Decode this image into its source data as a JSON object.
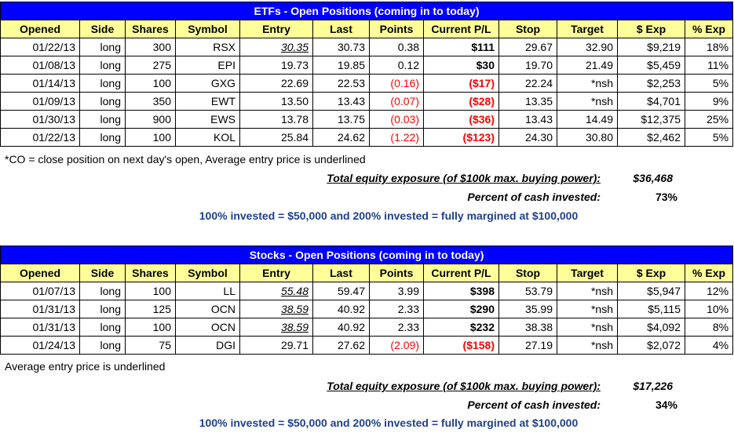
{
  "columns": [
    "Opened",
    "Side",
    "Shares",
    "Symbol",
    "Entry",
    "Last",
    "Points",
    "Current P/L",
    "Stop",
    "Target",
    "$ Exp",
    "% Exp"
  ],
  "etfs": {
    "title": "ETFs - Open Positions (coming in to today)",
    "rows": [
      {
        "opened": "01/22/13",
        "side": "long",
        "shares": "300",
        "symbol": "RSX",
        "entry": "30.35",
        "entry_underlined": true,
        "last": "30.73",
        "points": "0.38",
        "points_negative": false,
        "pl": "$111",
        "pl_negative": false,
        "stop": "29.67",
        "target": "32.90",
        "exp": "$9,219",
        "pct": "18%"
      },
      {
        "opened": "01/08/13",
        "side": "long",
        "shares": "275",
        "symbol": "EPI",
        "entry": "19.73",
        "entry_underlined": false,
        "last": "19.85",
        "points": "0.12",
        "points_negative": false,
        "pl": "$30",
        "pl_negative": false,
        "stop": "19.70",
        "target": "21.49",
        "exp": "$5,459",
        "pct": "11%"
      },
      {
        "opened": "01/14/13",
        "side": "long",
        "shares": "100",
        "symbol": "GXG",
        "entry": "22.69",
        "entry_underlined": false,
        "last": "22.53",
        "points": "(0.16)",
        "points_negative": true,
        "pl": "($17)",
        "pl_negative": true,
        "stop": "22.24",
        "target": "*nsh",
        "exp": "$2,253",
        "pct": "5%"
      },
      {
        "opened": "01/09/13",
        "side": "long",
        "shares": "350",
        "symbol": "EWT",
        "entry": "13.50",
        "entry_underlined": false,
        "last": "13.43",
        "points": "(0.07)",
        "points_negative": true,
        "pl": "($28)",
        "pl_negative": true,
        "stop": "13.35",
        "target": "*nsh",
        "exp": "$4,701",
        "pct": "9%"
      },
      {
        "opened": "01/30/13",
        "side": "long",
        "shares": "900",
        "symbol": "EWS",
        "entry": "13.78",
        "entry_underlined": false,
        "last": "13.75",
        "points": "(0.03)",
        "points_negative": true,
        "pl": "($36)",
        "pl_negative": true,
        "stop": "13.43",
        "target": "14.49",
        "exp": "$12,375",
        "pct": "25%"
      },
      {
        "opened": "01/22/13",
        "side": "long",
        "shares": "100",
        "symbol": "KOL",
        "entry": "25.84",
        "entry_underlined": false,
        "last": "24.62",
        "points": "(1.22)",
        "points_negative": true,
        "pl": "($123)",
        "pl_negative": true,
        "stop": "24.30",
        "target": "30.80",
        "exp": "$2,462",
        "pct": "5%"
      }
    ],
    "note": "*CO = close position on next day's open, Average entry price is underlined",
    "total_label": "Total equity exposure (of $100k max. buying power):",
    "total_value": "$36,468",
    "percent_label": "Percent of cash invested:",
    "percent_value": "73%",
    "invest_note": "100% invested = $50,000 and 200% invested = fully margined at $100,000"
  },
  "stocks": {
    "title": "Stocks - Open Positions (coming in to today)",
    "rows": [
      {
        "opened": "01/07/13",
        "side": "long",
        "shares": "100",
        "symbol": "LL",
        "entry": "55.48",
        "entry_underlined": true,
        "last": "59.47",
        "points": "3.99",
        "points_negative": false,
        "pl": "$398",
        "pl_negative": false,
        "stop": "53.79",
        "target": "*nsh",
        "exp": "$5,947",
        "pct": "12%"
      },
      {
        "opened": "01/31/13",
        "side": "long",
        "shares": "125",
        "symbol": "OCN",
        "entry": "38.59",
        "entry_underlined": true,
        "last": "40.92",
        "points": "2.33",
        "points_negative": false,
        "pl": "$290",
        "pl_negative": false,
        "stop": "35.99",
        "target": "*nsh",
        "exp": "$5,115",
        "pct": "10%"
      },
      {
        "opened": "01/31/13",
        "side": "long",
        "shares": "100",
        "symbol": "OCN",
        "entry": "38.59",
        "entry_underlined": true,
        "last": "40.92",
        "points": "2.33",
        "points_negative": false,
        "pl": "$232",
        "pl_negative": false,
        "stop": "38.38",
        "target": "*nsh",
        "exp": "$4,092",
        "pct": "8%"
      },
      {
        "opened": "01/24/13",
        "side": "long",
        "shares": "75",
        "symbol": "DGI",
        "entry": "29.71",
        "entry_underlined": false,
        "last": "27.62",
        "points": "(2.09)",
        "points_negative": true,
        "pl": "($158)",
        "pl_negative": true,
        "stop": "27.19",
        "target": "*nsh",
        "exp": "$2,072",
        "pct": "4%"
      }
    ],
    "note": "Average entry price is underlined",
    "total_label": "Total equity exposure (of $100k max. buying power):",
    "total_value": "$17,226",
    "percent_label": "Percent of cash invested:",
    "percent_value": "34%",
    "invest_note": "100% invested = $50,000 and 200% invested = fully margined at $100,000"
  },
  "colors": {
    "title_bg": "#0000ff",
    "header_bg": "#ffff99",
    "negative": "#ff0000",
    "invest_note": "#1f3f8f"
  }
}
